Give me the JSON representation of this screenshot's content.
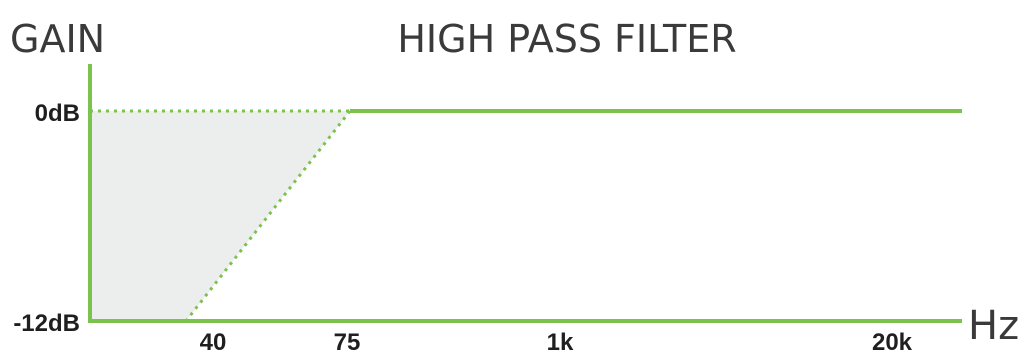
{
  "chart_data": {
    "type": "line",
    "title": "HIGH PASS FILTER",
    "ylabel": "GAIN",
    "xlabel": "Hz",
    "y_ticks": [
      "0dB",
      "-12dB"
    ],
    "x_ticks": [
      "40",
      "75",
      "1k",
      "20k"
    ],
    "x_scale": "log",
    "series": [
      {
        "x": [
          75,
          1000,
          20000,
          30000
        ],
        "y": [
          0,
          0,
          0,
          0
        ],
        "style": "solid"
      },
      {
        "x": [
          40,
          75
        ],
        "y": [
          -12,
          0
        ],
        "style": "dotted"
      }
    ],
    "shaded_region": {
      "description_x": [
        25,
        40,
        75
      ],
      "y": [
        -12,
        0
      ]
    },
    "colors": {
      "line": "#7cc24e",
      "shade": "#eceeed",
      "text": "#3a3a3a"
    }
  }
}
